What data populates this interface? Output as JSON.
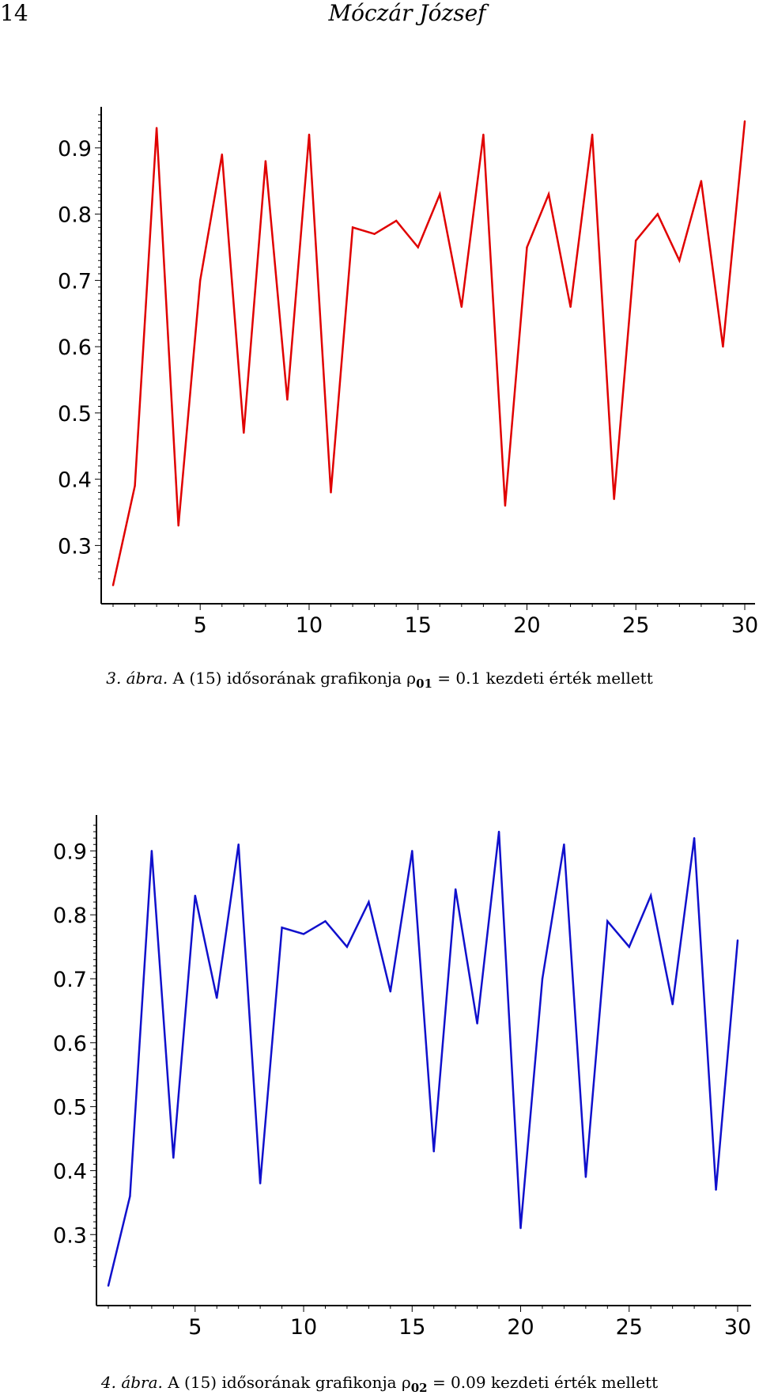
{
  "header": {
    "page_number": "14",
    "running_head": "Móczár József"
  },
  "captions": [
    {
      "label": "3. ábra.",
      "text": "A (15) idősorának grafikonja",
      "symbol": "ρ",
      "subscript": "01",
      "rest": "= 0.1 kezdeti érték mellett"
    },
    {
      "label": "4. ábra.",
      "text": "A (15) idősorának grafikonja",
      "symbol": "ρ",
      "subscript": "02",
      "rest": "= 0.09 kezdeti érték mellett"
    }
  ],
  "chart_data": [
    {
      "type": "line",
      "color": "#e00000",
      "xlim": [
        1,
        30
      ],
      "ylim": [
        0.23,
        0.95
      ],
      "xticks": [
        5,
        10,
        15,
        20,
        25,
        30
      ],
      "yticks": [
        0.3,
        0.4,
        0.5,
        0.6,
        0.7,
        0.8,
        0.9
      ],
      "x": [
        1,
        2,
        3,
        4,
        5,
        6,
        7,
        8,
        9,
        10,
        11,
        12,
        13,
        14,
        15,
        16,
        17,
        18,
        19,
        20,
        21,
        22,
        23,
        24,
        25,
        26,
        27,
        28,
        29,
        30
      ],
      "values": [
        0.24,
        0.39,
        0.93,
        0.33,
        0.7,
        0.89,
        0.47,
        0.88,
        0.52,
        0.92,
        0.38,
        0.78,
        0.77,
        0.79,
        0.75,
        0.83,
        0.66,
        0.92,
        0.36,
        0.75,
        0.83,
        0.66,
        0.92,
        0.37,
        0.76,
        0.8,
        0.73,
        0.85,
        0.6,
        0.94
      ]
    },
    {
      "type": "line",
      "color": "#1010cc",
      "xlim": [
        1,
        30
      ],
      "ylim": [
        0.21,
        0.94
      ],
      "xticks": [
        5,
        10,
        15,
        20,
        25,
        30
      ],
      "yticks": [
        0.3,
        0.4,
        0.5,
        0.6,
        0.7,
        0.8,
        0.9
      ],
      "x": [
        1,
        2,
        3,
        4,
        5,
        6,
        7,
        8,
        9,
        10,
        11,
        12,
        13,
        14,
        15,
        16,
        17,
        18,
        19,
        20,
        21,
        22,
        23,
        24,
        25,
        26,
        27,
        28,
        29,
        30
      ],
      "values": [
        0.22,
        0.36,
        0.9,
        0.42,
        0.83,
        0.67,
        0.91,
        0.38,
        0.78,
        0.77,
        0.79,
        0.75,
        0.82,
        0.68,
        0.9,
        0.43,
        0.84,
        0.63,
        0.93,
        0.31,
        0.7,
        0.91,
        0.39,
        0.79,
        0.75,
        0.83,
        0.66,
        0.92,
        0.37,
        0.76
      ]
    }
  ]
}
